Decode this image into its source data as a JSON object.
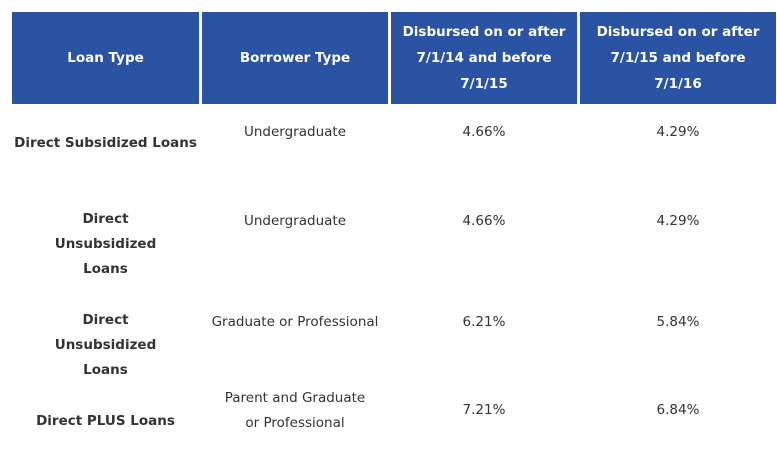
{
  "table": {
    "headers": [
      "Loan Type",
      "Borrower Type",
      "Disbursed on or after 7/1/14 and before 7/1/15",
      "Disbursed on or after 7/1/15 and before 7/1/16"
    ],
    "rows": [
      {
        "loan_type": "Direct Subsidized Loans",
        "borrower_type": "Undergraduate",
        "rate_2014": "4.66%",
        "rate_2015": "4.29%"
      },
      {
        "loan_type": "Direct Unsubsidized Loans",
        "borrower_type": "Undergraduate",
        "rate_2014": "4.66%",
        "rate_2015": "4.29%"
      },
      {
        "loan_type": "Direct Unsubsidized Loans",
        "borrower_type": "Graduate or Professional",
        "rate_2014": "6.21%",
        "rate_2015": "5.84%"
      },
      {
        "loan_type": "Direct PLUS Loans",
        "borrower_type": "Parent and Graduate or Professional",
        "rate_2014": "7.21%",
        "rate_2015": "6.84%"
      }
    ]
  },
  "colors": {
    "header_bg": "#2a53a4",
    "header_text": "#ffffff",
    "body_text": "#333333"
  }
}
